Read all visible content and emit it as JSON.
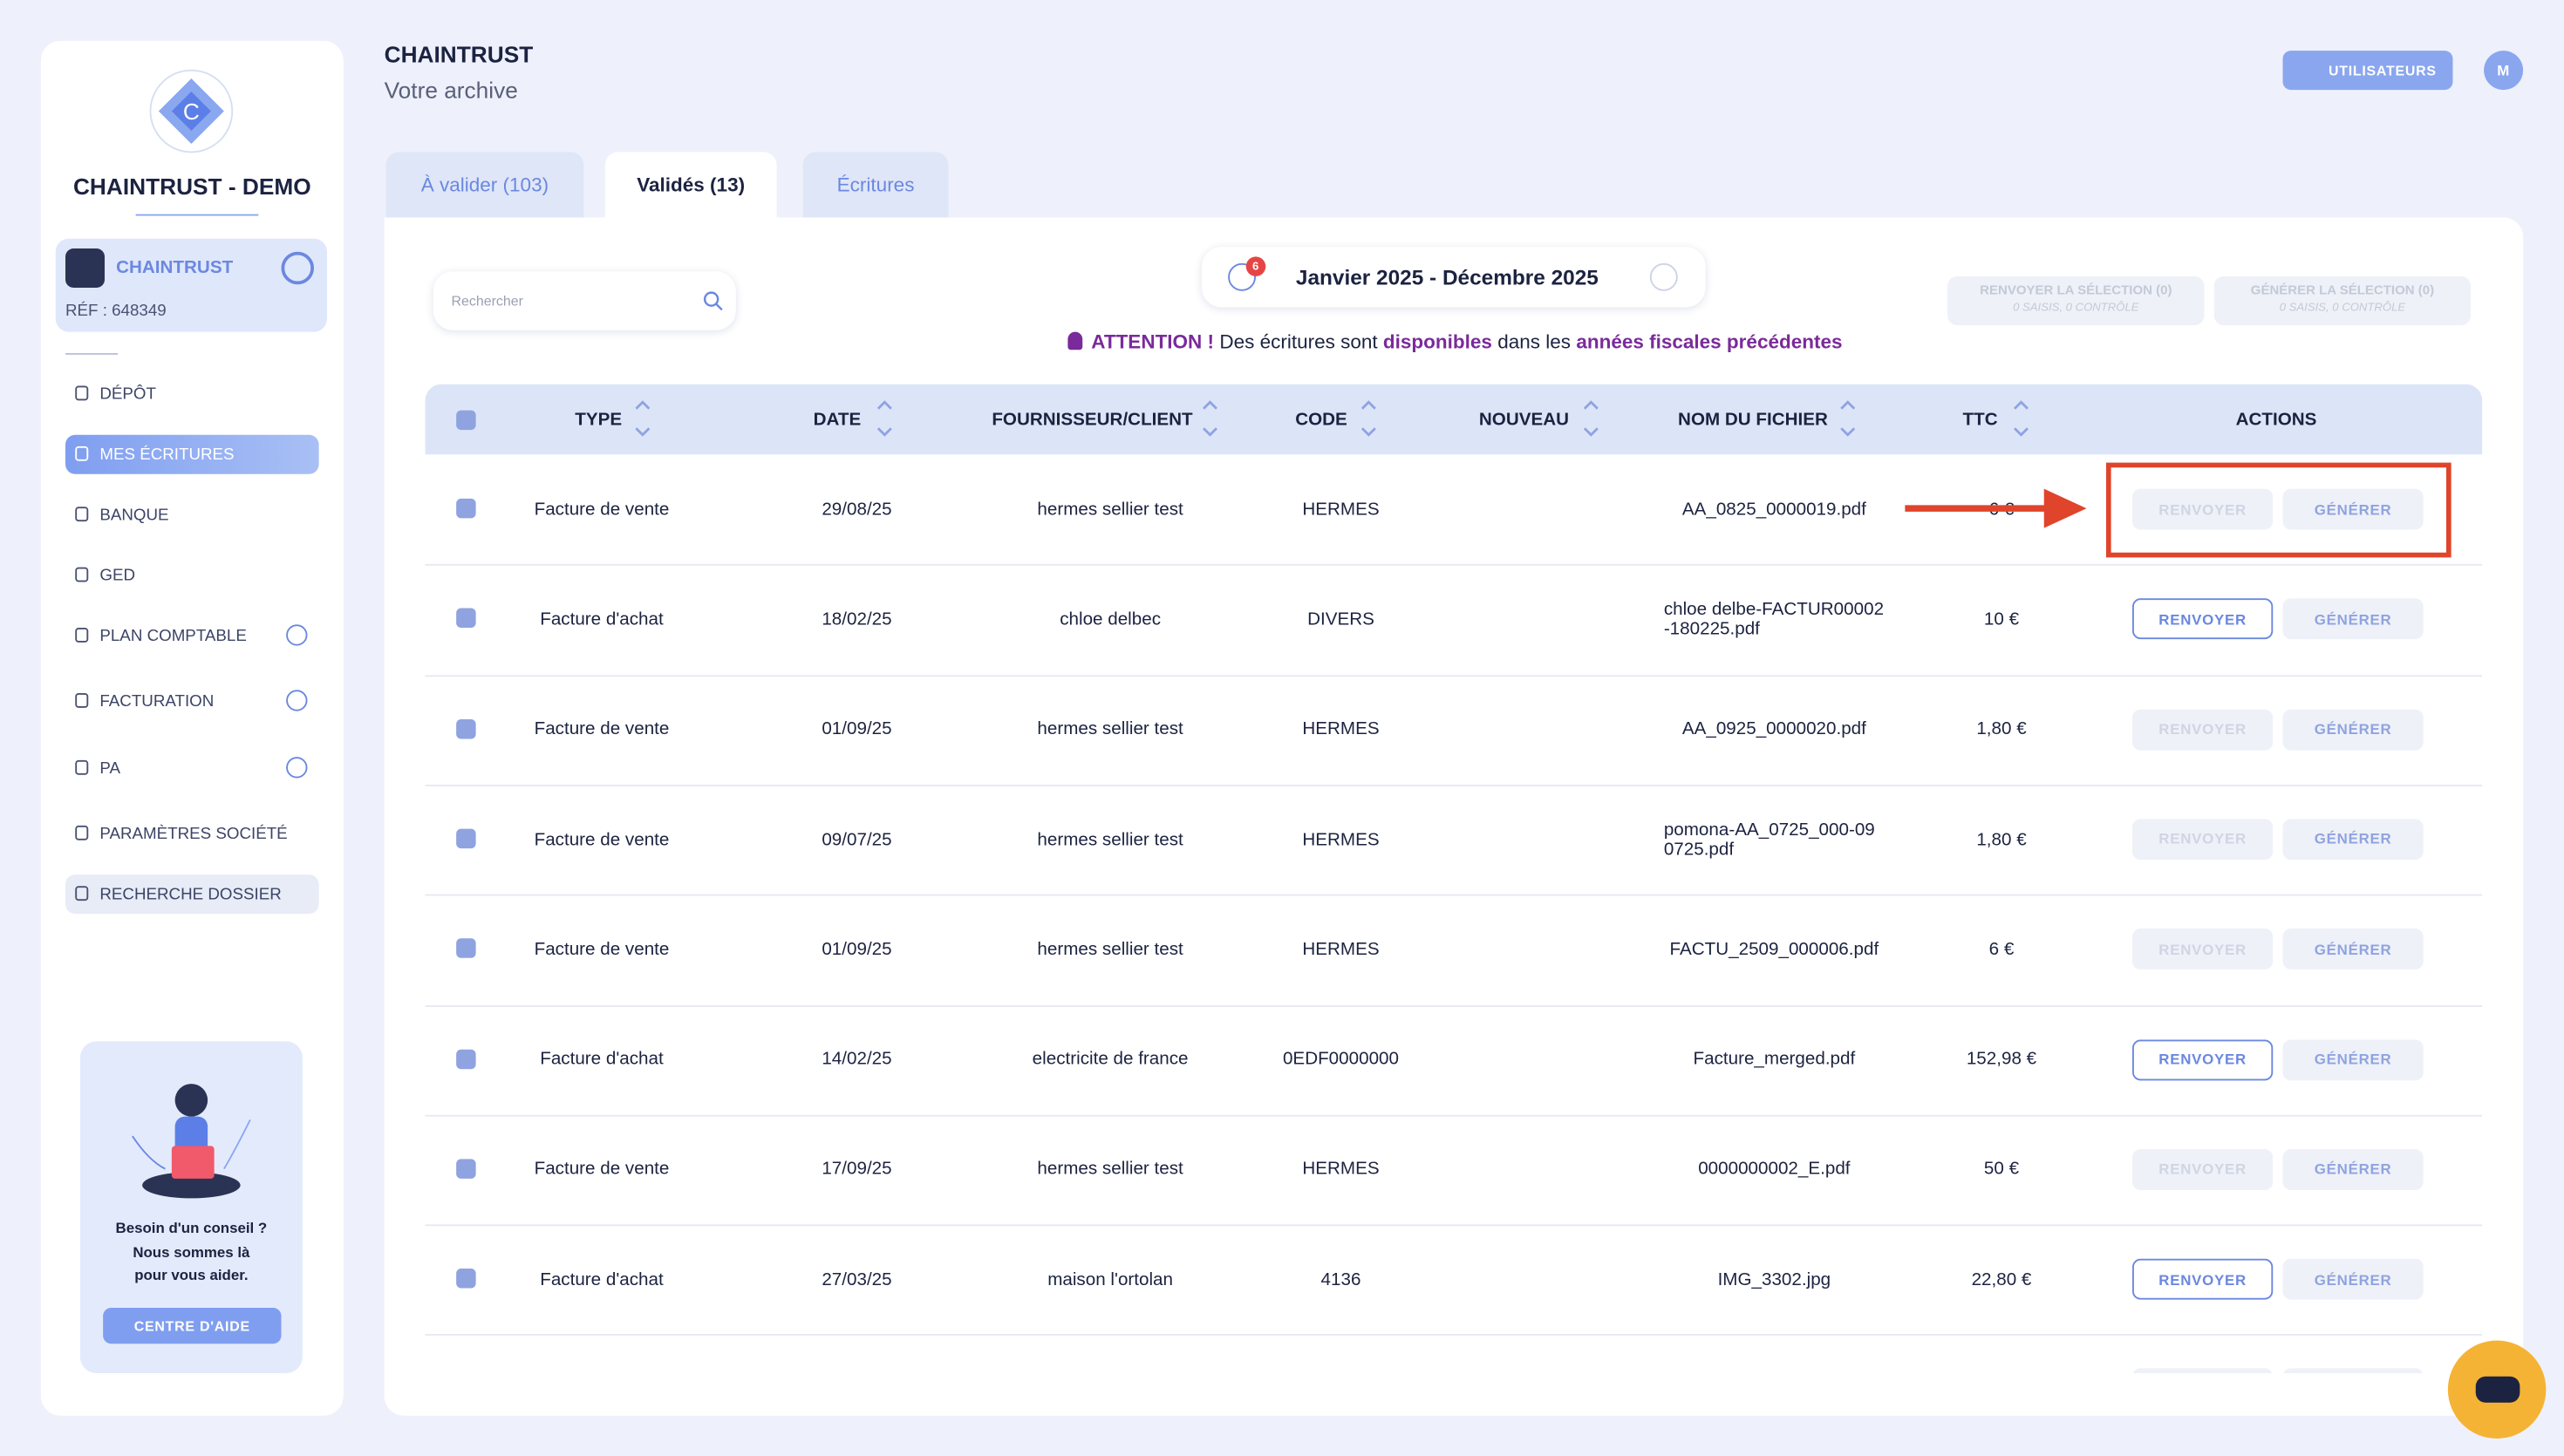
{
  "sidebar": {
    "brand": "CHAINTRUST - DEMO",
    "company": {
      "name": "CHAINTRUST",
      "ref": "RÉF : 648349"
    },
    "menu": [
      "DÉPÔT",
      "MES ÉCRITURES",
      "BANQUE",
      "GED",
      "PLAN COMPTABLE",
      "FACTURATION",
      "PA",
      "PARAMÈTRES SOCIÉTÉ",
      "RECHERCHE DOSSIER"
    ],
    "help": {
      "text": [
        "Besoin d'un conseil ?",
        "Nous sommes là",
        "pour vous aider."
      ],
      "button": "CENTRE D'AIDE"
    }
  },
  "header": {
    "title": "CHAINTRUST",
    "subtitle": "Votre archive",
    "users_button": "UTILISATEURS",
    "avatar": "M"
  },
  "tabs": [
    "À valider (103)",
    "Validés (13)",
    "Écritures"
  ],
  "toolbar": {
    "search_placeholder": "Rechercher",
    "period": "Janvier 2025 - Décembre 2025",
    "badge": "6",
    "bulk_actions": [
      {
        "label": "RENVOYER LA SÉLECTION (0)",
        "sub": "0 SAISIS, 0 CONTRÔLE"
      },
      {
        "label": "GÉNÉRER LA SÉLECTION (0)",
        "sub": "0 SAISIS, 0 CONTRÔLE"
      }
    ]
  },
  "notice": {
    "label": "ATTENTION !",
    "text": [
      "Des écritures sont",
      "disponibles",
      "dans les",
      "années fiscales précédentes"
    ]
  },
  "table": {
    "columns": [
      "TYPE",
      "DATE",
      "FOURNISSEUR/CLIENT",
      "CODE",
      "NOUVEAU",
      "NOM DU FICHIER",
      "TTC",
      "ACTIONS"
    ],
    "actions": [
      "RENVOYER",
      "GÉNÉRER"
    ],
    "rows": [
      {
        "type": "Facture de vente",
        "date": "29/08/25",
        "party": "hermes sellier test",
        "code": "HERMES",
        "file": "AA_0825_0000019.pdf",
        "ttc": "6 €",
        "resend": false
      },
      {
        "type": "Facture d'achat",
        "date": "18/02/25",
        "party": "chloe delbec",
        "code": "DIVERS",
        "file": "chloe delbe-FACTUR00002-180225.pdf",
        "ttc": "10 €",
        "resend": true
      },
      {
        "type": "Facture de vente",
        "date": "01/09/25",
        "party": "hermes sellier test",
        "code": "HERMES",
        "file": "AA_0925_0000020.pdf",
        "ttc": "1,80 €",
        "resend": false
      },
      {
        "type": "Facture de vente",
        "date": "09/07/25",
        "party": "hermes sellier test",
        "code": "HERMES",
        "file": "pomona-AA_0725_000-090725.pdf",
        "ttc": "1,80 €",
        "resend": false
      },
      {
        "type": "Facture de vente",
        "date": "01/09/25",
        "party": "hermes sellier test",
        "code": "HERMES",
        "file": "FACTU_2509_000006.pdf",
        "ttc": "6 €",
        "resend": false
      },
      {
        "type": "Facture d'achat",
        "date": "14/02/25",
        "party": "electricite de france",
        "code": "0EDF0000000",
        "file": "Facture_merged.pdf",
        "ttc": "152,98 €",
        "resend": true
      },
      {
        "type": "Facture de vente",
        "date": "17/09/25",
        "party": "hermes sellier test",
        "code": "HERMES",
        "file": "0000000002_E.pdf",
        "ttc": "50 €",
        "resend": false
      },
      {
        "type": "Facture d'achat",
        "date": "27/03/25",
        "party": "maison l'ortolan",
        "code": "4136",
        "file": "IMG_3302.jpg",
        "ttc": "22,80 €",
        "resend": true
      }
    ]
  }
}
